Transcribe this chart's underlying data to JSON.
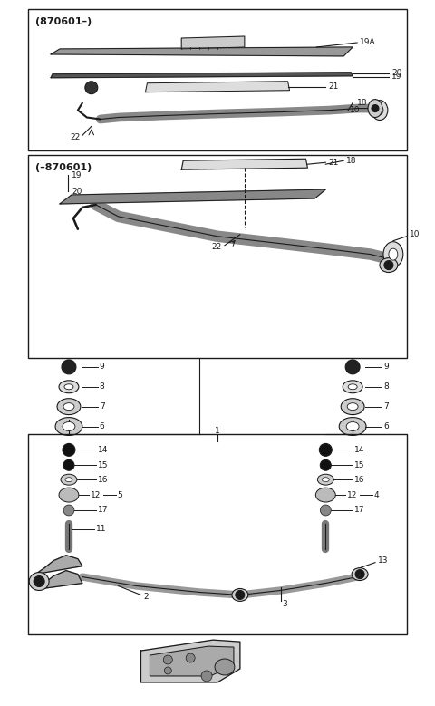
{
  "bg_color": "#ffffff",
  "line_color": "#1a1a1a",
  "fig_width": 4.8,
  "fig_height": 7.79,
  "dpi": 100,
  "box1_label": "(870601–)",
  "box2_label": "(–870601)"
}
